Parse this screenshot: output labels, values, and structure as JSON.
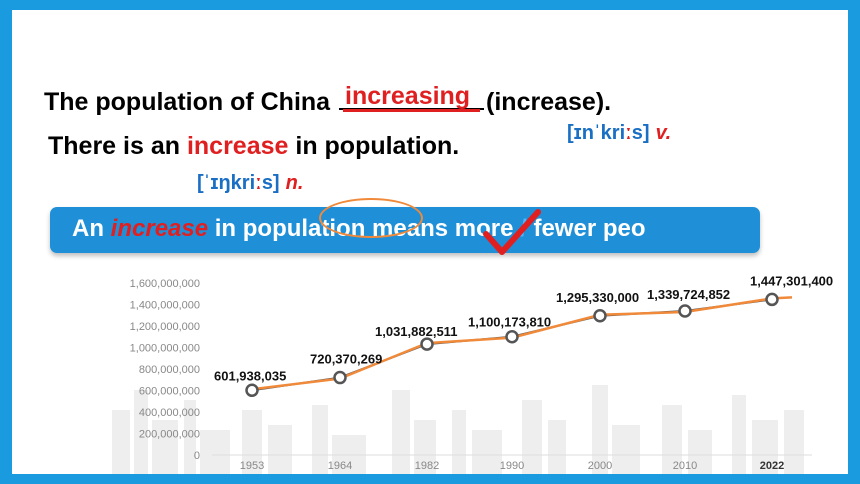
{
  "sentence1": {
    "before": "The population of China ",
    "answer": "increasing",
    "after": "(increase)."
  },
  "sentence2": {
    "before": "There is an ",
    "word": "increase",
    "after": " in population."
  },
  "phonetic_verb": {
    "open": "[ɪn",
    "mark": "ˈ",
    "body": "kri",
    "long": "ː",
    "close": "s]",
    "pos": "v."
  },
  "phonetic_noun": {
    "open": "[",
    "mark": "ˈ",
    "body": "ɪŋkri",
    "long": "ː",
    "close": "s]",
    "pos": "n."
  },
  "banner": {
    "before": "An ",
    "word": "increase",
    "middle": " in population means ",
    "opt1": "more",
    "slash": " / ",
    "opt2": "fewer peo"
  },
  "colors": {
    "accent": "#1a9be0",
    "banner": "#1f8fd8",
    "answer": "#e02020",
    "phonetic": "#1a6fc4",
    "line": "#f08a3a"
  },
  "chart_data": {
    "type": "line",
    "categories": [
      "1953",
      "1964",
      "1982",
      "1990",
      "2000",
      "2010",
      "2022"
    ],
    "values": [
      601938035,
      720370269,
      1031882511,
      1100173810,
      1295330000,
      1339724852,
      1447301400
    ],
    "labels": [
      "601,938,035",
      "720,370,269",
      "1,031,882,511",
      "1,100,173,810",
      "1,295,330,000",
      "1,339,724,852",
      "1,447,301,400"
    ],
    "y_ticks": [
      "0",
      "200,000,000",
      "400,000,000",
      "600,000,000",
      "800,000,000",
      "1,000,000,000",
      "1,200,000,000",
      "1,400,000,000",
      "1,600,000,000"
    ],
    "ylim": [
      0,
      1600000000
    ],
    "grid": false,
    "series_colors": [
      "#555555",
      "#f08a3a"
    ]
  }
}
